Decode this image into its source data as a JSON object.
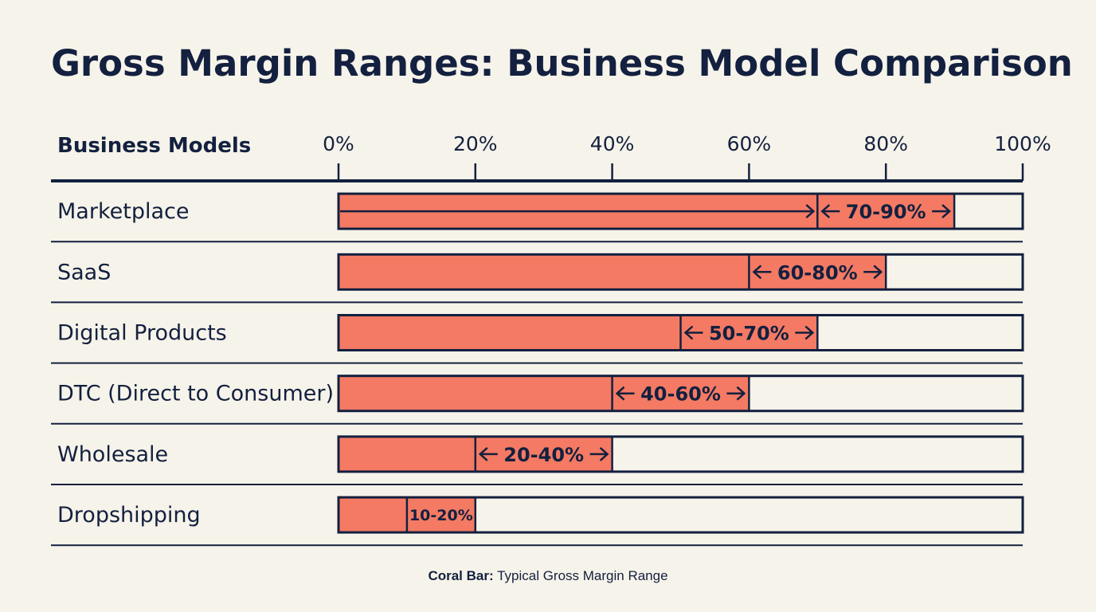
{
  "chart_data": {
    "type": "bar",
    "title": "Gross Margin Ranges: Business Model Comparison",
    "category_header": "Business Models",
    "x_ticks": [
      "0%",
      "20%",
      "40%",
      "60%",
      "80%",
      "100%"
    ],
    "xlim": [
      0,
      100
    ],
    "categories": [
      "Marketplace",
      "SaaS",
      "Digital Products",
      "DTC (Direct to Consumer)",
      "Wholesale",
      "Dropshipping"
    ],
    "ranges": [
      {
        "low": 70,
        "high": 90,
        "label": "70-90%"
      },
      {
        "low": 60,
        "high": 80,
        "label": "60-80%"
      },
      {
        "low": 50,
        "high": 70,
        "label": "50-70%"
      },
      {
        "low": 40,
        "high": 60,
        "label": "40-60%"
      },
      {
        "low": 20,
        "high": 40,
        "label": "20-40%"
      },
      {
        "low": 10,
        "high": 20,
        "label": "10-20%"
      }
    ],
    "colors": {
      "bar": "#f47a64",
      "outline": "#13203f",
      "background": "#f6f3ea"
    },
    "legend": {
      "key": "Coral Bar:",
      "text": "Typical Gross Margin Range"
    }
  }
}
